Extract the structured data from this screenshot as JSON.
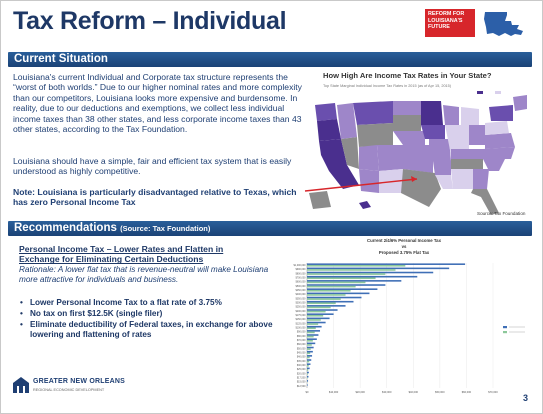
{
  "title": "Tax Reform – Individual",
  "badge": "REFORM FOR LOUISIANA'S FUTURE",
  "current_situation": {
    "heading": "Current Situation",
    "paragraph1": "Louisiana's current Individual and Corporate tax structure represents the “worst of both worlds.”  Due to our higher nominal rates and more complexity than our competitors, Louisiana looks more expensive and burdensome.  In reality, due to our deductions and exemptions, we collect less individual income taxes than 38 other states, and less corporate income taxes than 43 other states, according to the Tax Foundation.",
    "paragraph2": "Louisiana should have a simple, fair and efficient tax system that is easily understood as highly competitive.",
    "note": "Note:  Louisiana is particularly disadvantaged relative to Texas, which has zero Personal Income Tax"
  },
  "map": {
    "title": "How High Are Income Tax Rates in Your State?",
    "subtitle": "Top State Marginal Individual Income Tax Rates in 2015 (as of Apr 15, 2015)",
    "source": "Source: Tax Foundation",
    "colors": {
      "none": "#8c8c8c",
      "low": "#d9d0ec",
      "mid": "#9e86c9",
      "high": "#6a4fae",
      "top": "#4a2f8e",
      "arrow": "#d7262b"
    }
  },
  "recommendations": {
    "heading": "Recommendations",
    "source_note": "(Source:  Tax Foundation)",
    "subhead": "Personal Income Tax – Lower Rates and Flatten in Exchange for Eliminating Certain Deductions",
    "rationale": "Rationale:  A lower flat tax that is revenue-neutral will make Louisiana more attractive for individuals and business.",
    "bullets": [
      "Lower Personal Income Tax to a flat rate of 3.75%",
      "No tax on first $12.5K (single filer)",
      "Eliminate deductibility of Federal taxes, in exchange for above lowering and flattening of rates"
    ]
  },
  "chart_data": {
    "type": "bar",
    "orientation": "horizontal",
    "title_lines": [
      "Current 2/4/6% Personal Income Tax",
      "vs",
      "Proposed 3.75% Flat Tax"
    ],
    "categories": [
      "$1,000,000",
      "$900,000",
      "$800,000",
      "$700,000",
      "$600,000",
      "$500,000",
      "$450,000",
      "$400,000",
      "$350,000",
      "$300,000",
      "$250,000",
      "$200,000",
      "$175,000",
      "$150,000",
      "$125,000",
      "$100,000",
      "$90,000",
      "$80,000",
      "$70,000",
      "$60,000",
      "$50,000",
      "$45,000",
      "$40,000",
      "$35,000",
      "$30,000",
      "$25,000",
      "$20,000",
      "$17,500",
      "$15,000",
      "$12,500"
    ],
    "series": [
      {
        "values": [
          59500,
          53500,
          47500,
          41500,
          35500,
          29500,
          26500,
          23500,
          20500,
          17500,
          14500,
          11500,
          10000,
          8500,
          7000,
          5500,
          4900,
          4300,
          3700,
          3100,
          2500,
          2200,
          1900,
          1600,
          1300,
          1000,
          700,
          550,
          400,
          250
        ]
      },
      {
        "values": [
          37000,
          33300,
          29500,
          25800,
          22000,
          18300,
          16400,
          14500,
          12700,
          10800,
          8900,
          7000,
          6100,
          5200,
          4200,
          3300,
          2900,
          2500,
          2200,
          1800,
          1400,
          1200,
          1000,
          850,
          660,
          470,
          280,
          190,
          90,
          0
        ]
      }
    ],
    "xlim": [
      0,
      70000
    ],
    "xticks": [
      "$0",
      "$10,000",
      "$20,000",
      "$30,000",
      "$40,000",
      "$50,000",
      "$60,000",
      "$70,000"
    ],
    "colors": [
      "#3f6fb6",
      "#8cc89a"
    ]
  },
  "footer": {
    "org": "GREATER NEW ORLEANS",
    "sub": "REGIONAL ECONOMIC DEVELOPMENT",
    "page": "3"
  }
}
